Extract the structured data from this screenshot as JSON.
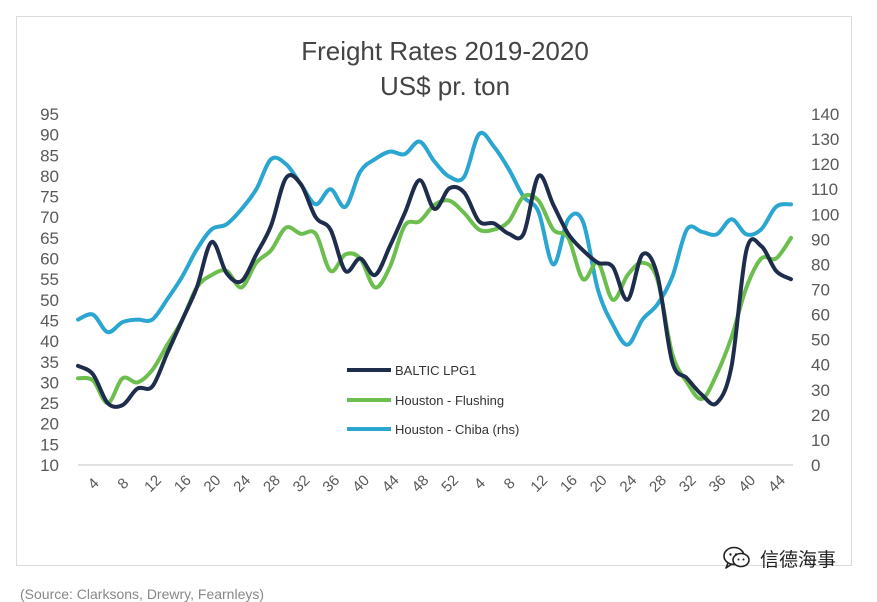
{
  "chart_data": {
    "type": "line",
    "title": "Freight Rates 2019-2020",
    "subtitle": "US$ pr. ton",
    "y_left": {
      "ticks": [
        10,
        15,
        20,
        25,
        30,
        35,
        40,
        45,
        50,
        55,
        60,
        65,
        70,
        75,
        80,
        85,
        90,
        95
      ],
      "range": [
        10,
        95
      ]
    },
    "y_right": {
      "ticks": [
        0,
        10,
        20,
        30,
        40,
        50,
        60,
        70,
        80,
        90,
        100,
        110,
        120,
        130,
        140
      ],
      "range": [
        0,
        140
      ]
    },
    "x_tick_labels": [
      "4",
      "8",
      "12",
      "16",
      "20",
      "24",
      "28",
      "32",
      "36",
      "40",
      "44",
      "48",
      "52",
      "4",
      "8",
      "12",
      "16",
      "20",
      "24",
      "28",
      "32",
      "36",
      "40",
      "44"
    ],
    "x_tick_every": 2,
    "series": [
      {
        "name": "BALTIC LPG1",
        "axis": "left",
        "color": "#1f2d4d",
        "values": [
          34,
          32,
          25,
          24.5,
          28.5,
          29,
          37,
          45,
          53,
          64,
          56.5,
          54.5,
          61,
          68,
          79.5,
          78,
          70,
          67,
          57,
          60,
          56,
          63,
          71,
          79,
          72,
          77,
          76,
          69,
          68.5,
          66,
          66,
          80,
          73,
          66,
          62,
          59,
          58,
          50,
          61,
          56,
          35,
          31,
          27,
          25,
          34,
          62,
          63,
          57,
          55
        ]
      },
      {
        "name": "Houston - Flushing",
        "axis": "left",
        "color": "#6cbf4e",
        "values": [
          31,
          30.5,
          25,
          31,
          30,
          33,
          39,
          45,
          53,
          56,
          57,
          53,
          59,
          62,
          67.5,
          66,
          66,
          57,
          61,
          60,
          53,
          58,
          68,
          69,
          73,
          74,
          71,
          67,
          67,
          69,
          75,
          74,
          67,
          65,
          55,
          59,
          50,
          56,
          59,
          55,
          37,
          30,
          26,
          32,
          41,
          53,
          60,
          60,
          65
        ]
      },
      {
        "name": "Houston - Chiba (rhs)",
        "axis": "right",
        "color": "#2aa6d0",
        "values": [
          58,
          60,
          53,
          57,
          58,
          58,
          66,
          75,
          86,
          94,
          96,
          102,
          110,
          122,
          120,
          112,
          104,
          110,
          103,
          117,
          122,
          125,
          124,
          129,
          121,
          115,
          115,
          132,
          127,
          118,
          107,
          101,
          80,
          98,
          97,
          70,
          56,
          48,
          58,
          64,
          75,
          94,
          93,
          92,
          98,
          92,
          94,
          103,
          104
        ]
      }
    ],
    "legend": {
      "position": "center-left",
      "entries": [
        "BALTIC LPG1",
        "Houston - Flushing",
        "Houston - Chiba (rhs)"
      ]
    }
  },
  "watermark": {
    "text": "信德海事",
    "icon": "wechat-icon"
  },
  "source_note": {
    "text": "(Source: Clarksons, Drewry, Fearnleys)"
  }
}
